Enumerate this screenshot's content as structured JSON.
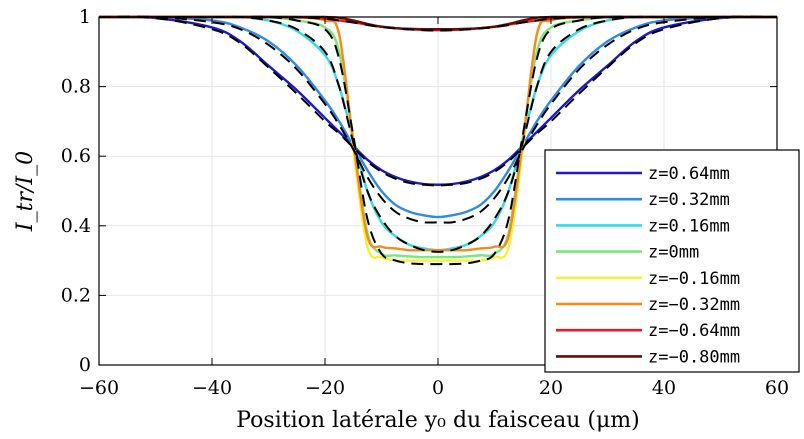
{
  "chart_data": {
    "type": "line",
    "xlabel": "Position latérale y₀ du faisceau (μm)",
    "ylabel": "I_tr/I_0",
    "xlim": [
      -60,
      60
    ],
    "ylim": [
      0,
      1
    ],
    "xticks": [
      -60,
      -40,
      -20,
      0,
      20,
      40,
      60
    ],
    "xtick_labels": [
      "−60",
      "−40",
      "−20",
      "0",
      "20",
      "40",
      "60"
    ],
    "yticks": [
      0,
      0.2,
      0.4,
      0.6,
      0.8,
      1
    ],
    "ytick_labels": [
      "0",
      "0.2",
      "0.4",
      "0.6",
      "0.8",
      "1"
    ],
    "grid": true,
    "legend_position": "bottom-right",
    "x": [
      -60,
      -50,
      -40,
      -35,
      -30,
      -25,
      -20,
      -17.5,
      -15,
      -12.5,
      -10,
      -7.5,
      -5,
      -2.5,
      0,
      2.5,
      5,
      7.5,
      10,
      12.5,
      15,
      17.5,
      20,
      25,
      30,
      35,
      40,
      50,
      60
    ],
    "series": [
      {
        "name": "z=0.64mm",
        "color": "#1a1ac8",
        "values": [
          1.0,
          0.997,
          0.97,
          0.93,
          0.86,
          0.79,
          0.71,
          0.67,
          0.63,
          0.59,
          0.56,
          0.54,
          0.527,
          0.52,
          0.518,
          0.52,
          0.527,
          0.54,
          0.56,
          0.59,
          0.63,
          0.67,
          0.71,
          0.79,
          0.86,
          0.93,
          0.97,
          0.997,
          1.0
        ]
      },
      {
        "name": "z=0.32mm",
        "color": "#2e8ae6",
        "values": [
          1.0,
          1.0,
          0.99,
          0.97,
          0.93,
          0.86,
          0.76,
          0.7,
          0.63,
          0.56,
          0.5,
          0.46,
          0.44,
          0.43,
          0.425,
          0.43,
          0.44,
          0.46,
          0.5,
          0.56,
          0.63,
          0.7,
          0.76,
          0.86,
          0.93,
          0.97,
          0.99,
          1.0,
          1.0
        ]
      },
      {
        "name": "z=0.16mm",
        "color": "#33dbe6",
        "values": [
          1.0,
          1.0,
          1.0,
          1.0,
          0.99,
          0.96,
          0.89,
          0.8,
          0.65,
          0.5,
          0.41,
          0.37,
          0.345,
          0.335,
          0.33,
          0.335,
          0.345,
          0.37,
          0.41,
          0.5,
          0.65,
          0.8,
          0.89,
          0.96,
          0.99,
          1.0,
          1.0,
          1.0,
          1.0
        ]
      },
      {
        "name": "z=0mm",
        "color": "#7be67b",
        "values": [
          1.0,
          1.0,
          1.0,
          1.0,
          1.0,
          0.99,
          0.97,
          0.9,
          0.65,
          0.38,
          0.32,
          0.315,
          0.312,
          0.31,
          0.31,
          0.31,
          0.312,
          0.315,
          0.32,
          0.38,
          0.65,
          0.9,
          0.97,
          0.99,
          1.0,
          1.0,
          1.0,
          1.0,
          1.0
        ]
      },
      {
        "name": "z=−0.16mm",
        "color": "#f5f03a",
        "values": [
          1.0,
          1.0,
          1.0,
          1.0,
          1.0,
          1.0,
          0.99,
          0.95,
          0.62,
          0.34,
          0.31,
          0.3,
          0.3,
          0.3,
          0.3,
          0.3,
          0.3,
          0.3,
          0.31,
          0.34,
          0.62,
          0.95,
          0.99,
          1.0,
          1.0,
          1.0,
          1.0,
          1.0,
          1.0
        ]
      },
      {
        "name": "z=−0.32mm",
        "color": "#f58a1f",
        "values": [
          1.0,
          1.0,
          1.0,
          1.0,
          1.0,
          1.0,
          0.99,
          0.95,
          0.64,
          0.37,
          0.34,
          0.335,
          0.33,
          0.33,
          0.33,
          0.33,
          0.33,
          0.335,
          0.34,
          0.37,
          0.64,
          0.95,
          0.99,
          1.0,
          1.0,
          1.0,
          1.0,
          1.0,
          1.0
        ]
      },
      {
        "name": "z=−0.64mm",
        "color": "#e61a1a",
        "values": [
          1.0,
          1.0,
          1.0,
          1.0,
          1.0,
          0.999,
          0.995,
          0.99,
          0.985,
          0.978,
          0.972,
          0.968,
          0.965,
          0.963,
          0.962,
          0.963,
          0.965,
          0.968,
          0.972,
          0.978,
          0.985,
          0.99,
          0.995,
          0.999,
          1.0,
          1.0,
          1.0,
          1.0,
          1.0
        ]
      },
      {
        "name": "z=−0.80mm",
        "color": "#6b0a0a",
        "values": [
          1.0,
          1.0,
          1.0,
          1.0,
          1.0,
          1.0,
          1.0,
          0.998,
          0.99,
          0.98,
          0.972,
          0.968,
          0.966,
          0.965,
          0.965,
          0.965,
          0.966,
          0.968,
          0.972,
          0.98,
          0.99,
          0.998,
          1.0,
          1.0,
          1.0,
          1.0,
          1.0,
          1.0,
          1.0
        ]
      }
    ],
    "fit_series": [
      {
        "style": "dashed",
        "color": "#000000",
        "values": [
          1.0,
          0.997,
          0.965,
          0.925,
          0.855,
          0.78,
          0.7,
          0.665,
          0.625,
          0.585,
          0.555,
          0.535,
          0.523,
          0.518,
          0.516,
          0.518,
          0.523,
          0.535,
          0.555,
          0.585,
          0.625,
          0.665,
          0.7,
          0.78,
          0.855,
          0.925,
          0.965,
          0.997,
          1.0
        ]
      },
      {
        "style": "dashed",
        "color": "#000000",
        "values": [
          1.0,
          1.0,
          0.985,
          0.965,
          0.92,
          0.85,
          0.75,
          0.69,
          0.62,
          0.54,
          0.48,
          0.44,
          0.42,
          0.41,
          0.41,
          0.41,
          0.42,
          0.44,
          0.48,
          0.54,
          0.62,
          0.69,
          0.75,
          0.85,
          0.92,
          0.965,
          0.985,
          1.0,
          1.0
        ]
      },
      {
        "style": "dashed",
        "color": "#000000",
        "values": [
          1.0,
          1.0,
          1.0,
          1.0,
          0.99,
          0.965,
          0.9,
          0.8,
          0.64,
          0.5,
          0.42,
          0.37,
          0.345,
          0.33,
          0.325,
          0.33,
          0.345,
          0.37,
          0.42,
          0.5,
          0.64,
          0.8,
          0.9,
          0.965,
          0.99,
          1.0,
          1.0,
          1.0,
          1.0
        ]
      },
      {
        "style": "dashed",
        "color": "#000000",
        "values": [
          1.0,
          1.0,
          1.0,
          1.0,
          1.0,
          0.99,
          0.965,
          0.88,
          0.66,
          0.42,
          0.32,
          0.3,
          0.292,
          0.29,
          0.29,
          0.29,
          0.292,
          0.3,
          0.32,
          0.42,
          0.66,
          0.88,
          0.965,
          0.99,
          1.0,
          1.0,
          1.0,
          1.0,
          1.0
        ]
      },
      {
        "style": "dashed",
        "color": "#000000",
        "values": [
          1.0,
          1.0,
          1.0,
          1.0,
          1.0,
          0.999,
          0.995,
          0.99,
          0.984,
          0.977,
          0.971,
          0.967,
          0.964,
          0.962,
          0.961,
          0.962,
          0.964,
          0.967,
          0.971,
          0.977,
          0.984,
          0.99,
          0.995,
          0.999,
          1.0,
          1.0,
          1.0,
          1.0,
          1.0
        ]
      }
    ]
  }
}
